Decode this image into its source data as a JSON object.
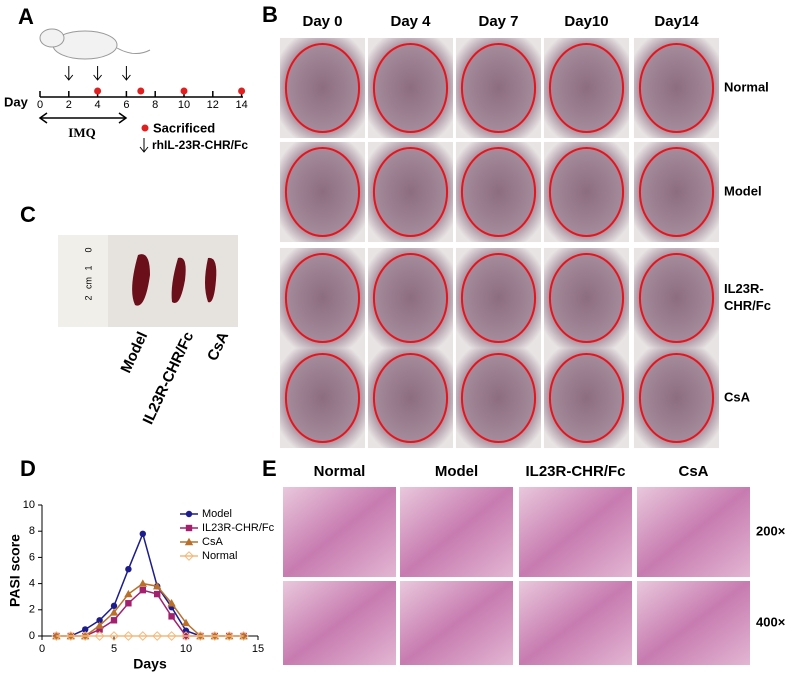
{
  "panels": {
    "A": {
      "letter": "A",
      "axis_label": "Day",
      "days": [
        0,
        2,
        4,
        6,
        8,
        10,
        12,
        14
      ],
      "injection_days": [
        2,
        4,
        6
      ],
      "sacrificed_days": [
        4,
        7,
        10,
        14
      ],
      "bracket_label": "IMQ",
      "legend_sacrificed": "Sacrificed",
      "legend_injection": "rhIL-23R-CHR/Fc"
    },
    "B": {
      "letter": "B",
      "columns": [
        "Day 0",
        "Day 4",
        "Day 7",
        "Day10",
        "Day14"
      ],
      "rows": [
        [
          "Normal"
        ],
        [
          "Model"
        ],
        [
          "IL23R-",
          "CHR/Fc"
        ],
        [
          "CsA"
        ]
      ]
    },
    "C": {
      "letter": "C",
      "groups": [
        "Model",
        "IL23R-CHR/Fc",
        "CsA"
      ],
      "ruler": [
        "0",
        "1",
        "cm",
        "2"
      ]
    },
    "D": {
      "letter": "D"
    },
    "E": {
      "letter": "E",
      "columns": [
        "Normal",
        "Model",
        "IL23R-CHR/Fc",
        "CsA"
      ],
      "rows": [
        "200×",
        "400×"
      ]
    }
  },
  "chart_data": {
    "type": "line",
    "x_label": "Days",
    "y_label": "PASI score",
    "x": [
      1,
      2,
      3,
      4,
      5,
      6,
      7,
      8,
      9,
      10,
      11,
      12,
      13,
      14
    ],
    "series": [
      {
        "name": "Model",
        "color": "#1c1c8c",
        "marker": "circle",
        "values": [
          0,
          0,
          0.5,
          1.2,
          2.3,
          5.1,
          7.8,
          3.8,
          2.2,
          0.4,
          0,
          0,
          0,
          0
        ]
      },
      {
        "name": "IL23R-CHR/Fc",
        "color": "#a3206e",
        "marker": "square",
        "values": [
          0,
          0,
          0,
          0.5,
          1.2,
          2.5,
          3.5,
          3.2,
          1.5,
          0,
          0,
          0,
          0,
          0
        ]
      },
      {
        "name": "CsA",
        "color": "#b8702a",
        "marker": "triangle",
        "values": [
          0,
          0,
          0,
          0.8,
          1.8,
          3.2,
          4.0,
          3.8,
          2.5,
          1.0,
          0,
          0,
          0,
          0
        ]
      },
      {
        "name": "Normal",
        "color": "#f5b87a",
        "marker": "diamond",
        "values": [
          0,
          0,
          0,
          0,
          0,
          0,
          0,
          0,
          0,
          0,
          0,
          0,
          0,
          0
        ]
      }
    ],
    "xlim": [
      0,
      15
    ],
    "xticks": [
      0,
      5,
      10,
      15
    ],
    "ylim": [
      0,
      10
    ],
    "yticks": [
      0,
      2,
      4,
      6,
      8,
      10
    ]
  }
}
